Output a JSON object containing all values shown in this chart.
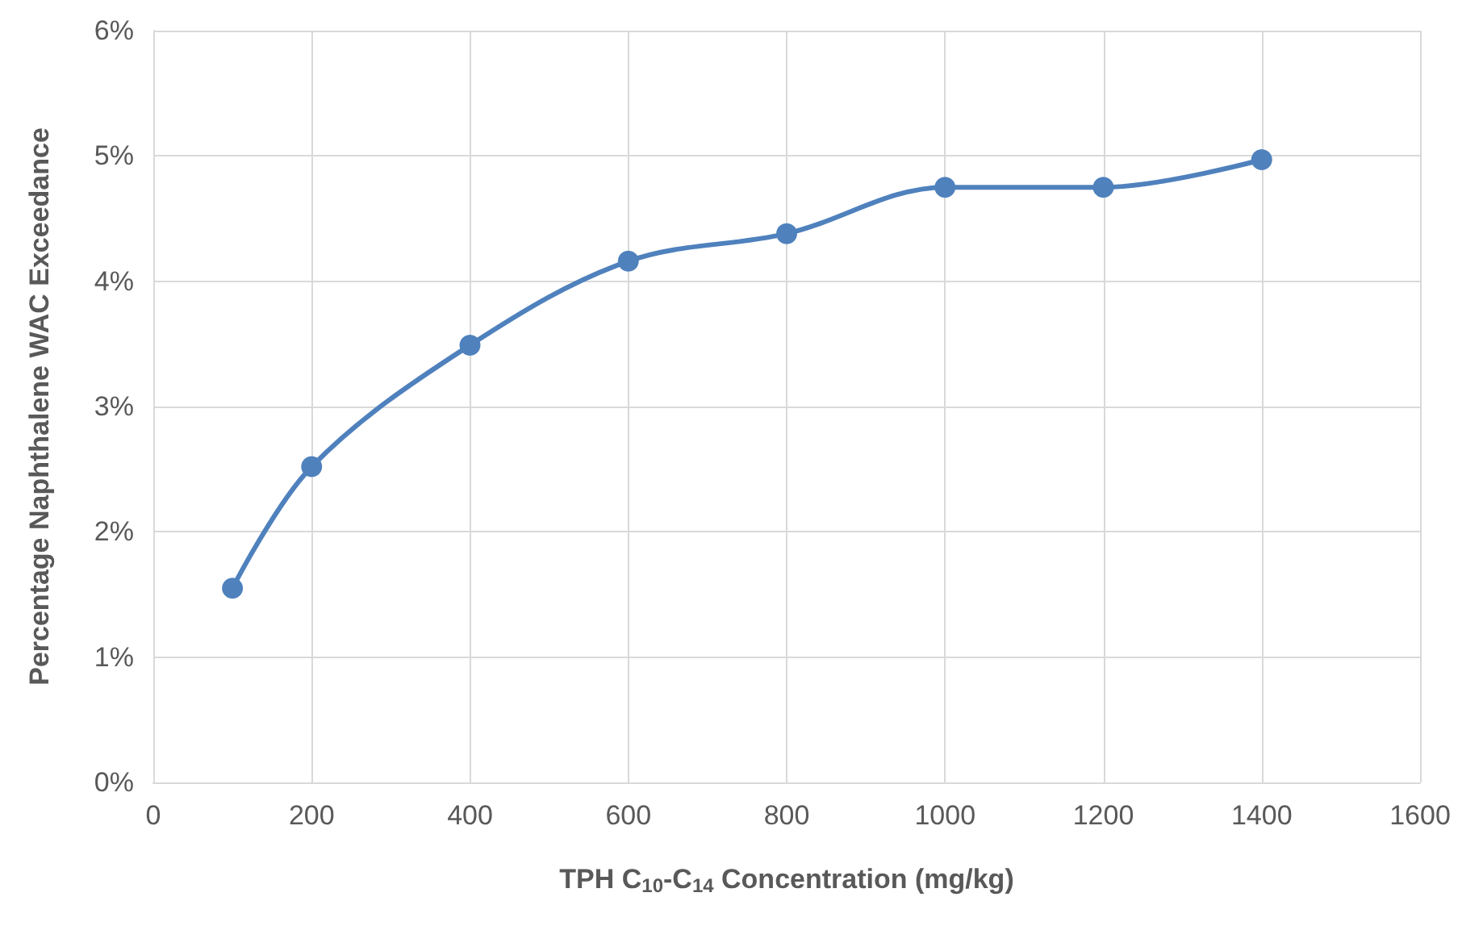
{
  "chart_data": {
    "type": "line",
    "xlabel": "TPH C$_{10}$-C$_{14}$ Concentration (mg/kg)",
    "ylabel": "Percentage Naphthalene WAC Exceedance",
    "x": [
      100,
      200,
      400,
      600,
      800,
      1000,
      1200,
      1400
    ],
    "series": [
      {
        "color": "#4f81bd",
        "values": [
          1.55,
          2.52,
          3.49,
          4.16,
          4.38,
          4.75,
          4.75,
          4.97
        ]
      }
    ],
    "xlim": [
      0,
      1600
    ],
    "xticks": [
      0,
      200,
      400,
      600,
      800,
      1000,
      1200,
      1400,
      1600
    ],
    "ylim": [
      0,
      6
    ],
    "yticks": [
      {
        "value": 0,
        "label": "0%"
      },
      {
        "value": 1,
        "label": "1%"
      },
      {
        "value": 2,
        "label": "2%"
      },
      {
        "value": 3,
        "label": "3%"
      },
      {
        "value": 4,
        "label": "4%"
      },
      {
        "value": 5,
        "label": "5%"
      },
      {
        "value": 6,
        "label": "6%"
      }
    ],
    "grid": true,
    "marker": "circle",
    "line_style": "solid"
  }
}
